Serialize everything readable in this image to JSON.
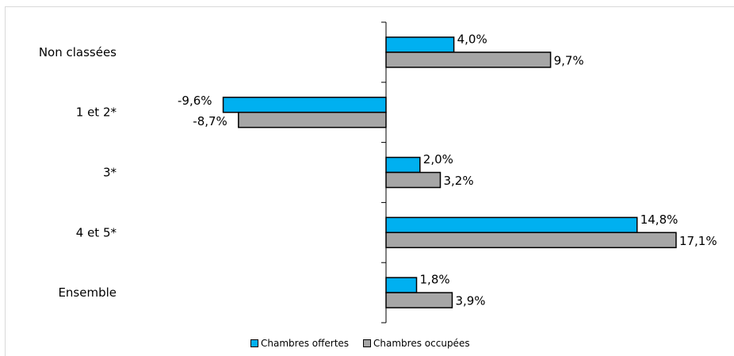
{
  "chart_data": {
    "type": "bar",
    "orientation": "horizontal",
    "categories": [
      "Non classées",
      "1 et 2*",
      "3*",
      "4 et 5*",
      "Ensemble"
    ],
    "series": [
      {
        "name": "Chambres offertes",
        "color": "#00b0f0",
        "values": [
          4.0,
          -9.6,
          2.0,
          14.8,
          1.8
        ],
        "labels": [
          "4,0%",
          "-9,6%",
          "2,0%",
          "14,8%",
          "1,8%"
        ]
      },
      {
        "name": "Chambres occupées",
        "color": "#a6a6a6",
        "values": [
          9.7,
          -8.7,
          3.2,
          17.1,
          3.9
        ],
        "labels": [
          "9,7%",
          "-8,7%",
          "3,2%",
          "17,1%",
          "3,9%"
        ]
      }
    ],
    "xlim": [
      -22,
      22
    ],
    "grid": false,
    "legend_position": "bottom"
  }
}
